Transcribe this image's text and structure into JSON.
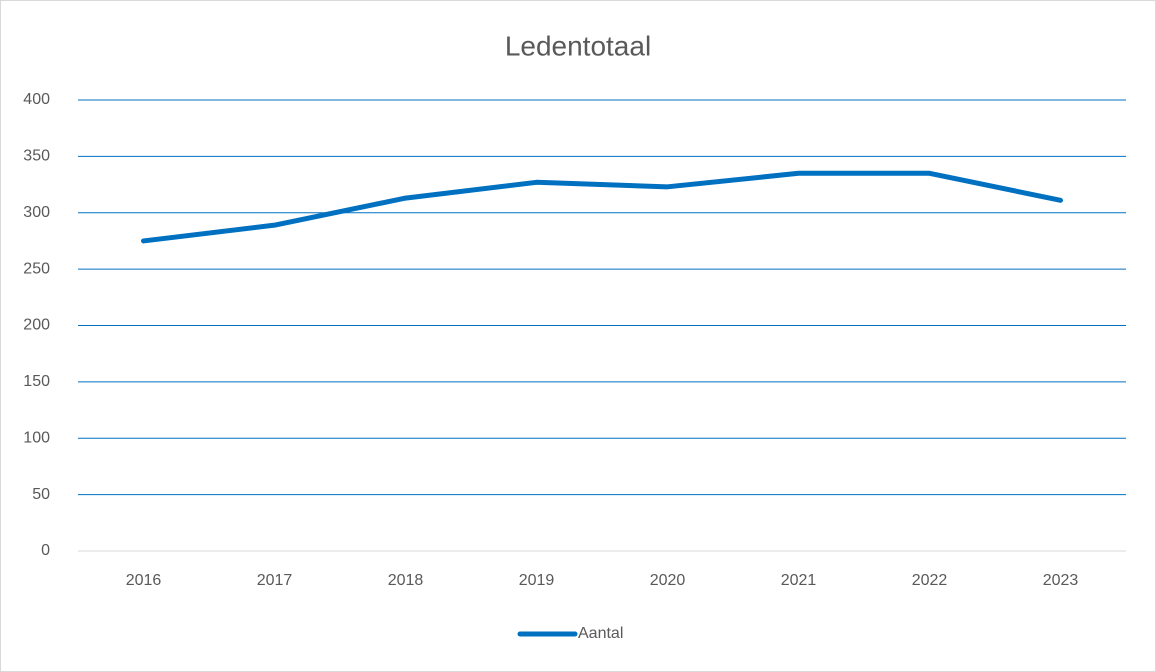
{
  "chart_data": {
    "type": "line",
    "title": "Ledentotaal",
    "categories": [
      "2016",
      "2017",
      "2018",
      "2019",
      "2020",
      "2021",
      "2022",
      "2023"
    ],
    "series": [
      {
        "name": "Aantal",
        "color": "#0070c0",
        "values": [
          275,
          289,
          313,
          327,
          323,
          335,
          335,
          311
        ]
      }
    ],
    "ylim": [
      0,
      400
    ],
    "yticks": [
      0,
      50,
      100,
      150,
      200,
      250,
      300,
      350,
      400
    ],
    "grid": true,
    "legend": "bottom"
  }
}
